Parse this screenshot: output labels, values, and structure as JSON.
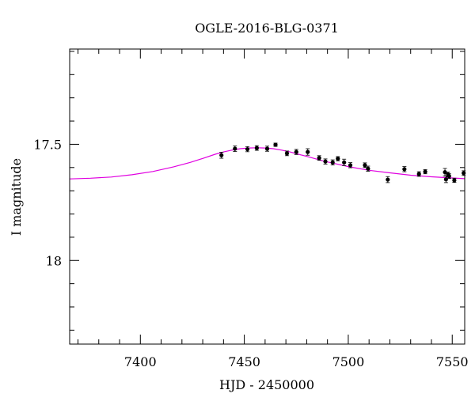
{
  "chart_data": {
    "type": "scatter",
    "title": "OGLE-2016-BLG-0371",
    "xlabel": "HJD - 2450000",
    "ylabel": "I magnitude",
    "xlim": [
      7366,
      7556
    ],
    "ylim": [
      18.36,
      17.09
    ],
    "y_inverted": true,
    "grid": false,
    "x_ticks": [
      7400,
      7450,
      7500,
      7550
    ],
    "x_tick_labels": [
      "7400",
      "7450",
      "7500",
      "7550"
    ],
    "y_ticks": [
      17.5,
      18.0
    ],
    "y_tick_labels": [
      "17.5",
      "18"
    ],
    "colors": {
      "model": "#e000e0",
      "points": "#000000"
    },
    "series": [
      {
        "kind": "points_with_errorbars",
        "points": [
          {
            "x": 7439.0,
            "y": 17.547,
            "err": 0.013
          },
          {
            "x": 7445.5,
            "y": 17.519,
            "err": 0.012
          },
          {
            "x": 7451.5,
            "y": 17.521,
            "err": 0.011
          },
          {
            "x": 7456.0,
            "y": 17.516,
            "err": 0.01
          },
          {
            "x": 7461.0,
            "y": 17.519,
            "err": 0.011
          },
          {
            "x": 7465.0,
            "y": 17.502,
            "err": 0.007
          },
          {
            "x": 7470.5,
            "y": 17.539,
            "err": 0.01
          },
          {
            "x": 7475.0,
            "y": 17.533,
            "err": 0.011
          },
          {
            "x": 7480.5,
            "y": 17.533,
            "err": 0.014
          },
          {
            "x": 7486.0,
            "y": 17.559,
            "err": 0.01
          },
          {
            "x": 7489.0,
            "y": 17.574,
            "err": 0.011
          },
          {
            "x": 7492.5,
            "y": 17.578,
            "err": 0.011
          },
          {
            "x": 7495.0,
            "y": 17.562,
            "err": 0.009
          },
          {
            "x": 7498.0,
            "y": 17.578,
            "err": 0.014
          },
          {
            "x": 7501.0,
            "y": 17.59,
            "err": 0.011
          },
          {
            "x": 7508.0,
            "y": 17.59,
            "err": 0.01
          },
          {
            "x": 7509.5,
            "y": 17.605,
            "err": 0.011
          },
          {
            "x": 7519.0,
            "y": 17.652,
            "err": 0.013
          },
          {
            "x": 7527.0,
            "y": 17.607,
            "err": 0.011
          },
          {
            "x": 7534.0,
            "y": 17.628,
            "err": 0.01
          },
          {
            "x": 7537.0,
            "y": 17.618,
            "err": 0.009
          },
          {
            "x": 7546.5,
            "y": 17.62,
            "err": 0.016
          },
          {
            "x": 7547.0,
            "y": 17.651,
            "err": 0.014
          },
          {
            "x": 7548.0,
            "y": 17.63,
            "err": 0.01
          },
          {
            "x": 7548.5,
            "y": 17.637,
            "err": 0.01
          },
          {
            "x": 7551.0,
            "y": 17.655,
            "err": 0.009
          },
          {
            "x": 7555.5,
            "y": 17.624,
            "err": 0.01
          }
        ]
      },
      {
        "kind": "model_curve",
        "x": [
          7366,
          7376,
          7386,
          7396,
          7406,
          7416,
          7424,
          7430,
          7436,
          7440,
          7444,
          7448,
          7452,
          7456,
          7460,
          7464,
          7468,
          7472,
          7476,
          7480,
          7484,
          7488,
          7494,
          7500,
          7510,
          7520,
          7530,
          7540,
          7550,
          7556
        ],
        "y": [
          17.649,
          17.646,
          17.641,
          17.631,
          17.617,
          17.597,
          17.578,
          17.561,
          17.543,
          17.533,
          17.525,
          17.519,
          17.516,
          17.515,
          17.516,
          17.519,
          17.525,
          17.533,
          17.543,
          17.552,
          17.562,
          17.572,
          17.584,
          17.596,
          17.612,
          17.623,
          17.633,
          17.64,
          17.645,
          17.648
        ]
      }
    ]
  }
}
